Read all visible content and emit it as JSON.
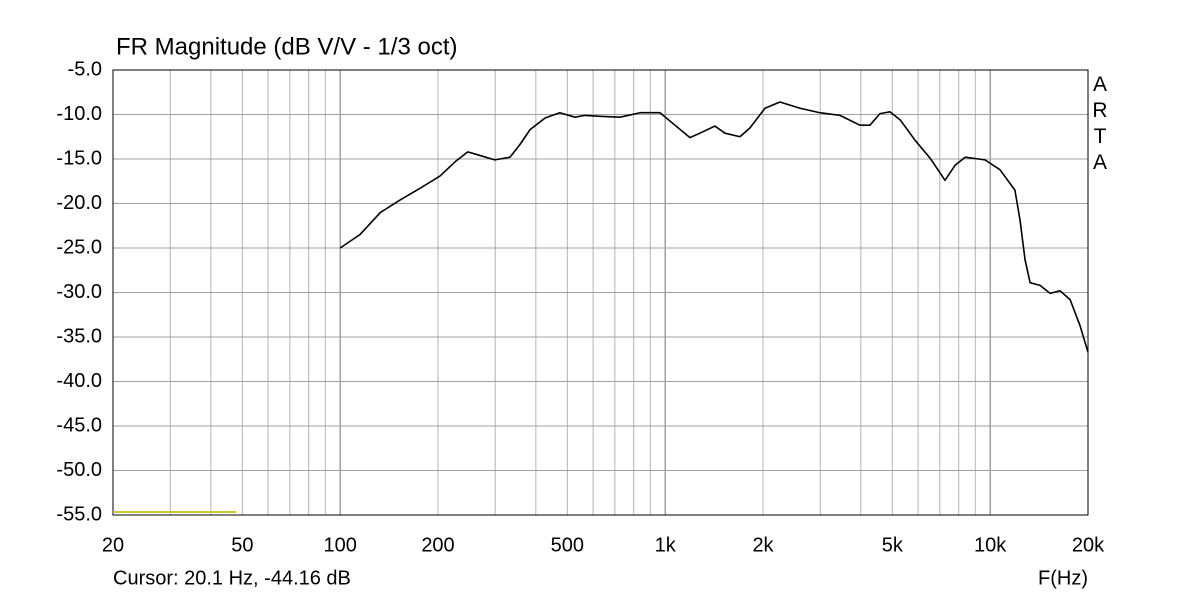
{
  "chart_data": {
    "type": "line",
    "title": "FR Magnitude (dB V/V - 1/3 oct)",
    "watermark": "ARTA",
    "cursor": "Cursor: 20.1 Hz, -44.16 dB",
    "x_label": "F(Hz)",
    "xscale": "log",
    "xlim": [
      20,
      20000
    ],
    "ylim": [
      -55,
      -5
    ],
    "xticks": [
      20,
      50,
      100,
      200,
      500,
      {
        "value": 1000,
        "label": "1k"
      },
      {
        "value": 2000,
        "label": "2k"
      },
      {
        "value": 5000,
        "label": "5k"
      },
      {
        "value": 10000,
        "label": "10k"
      },
      {
        "value": 20000,
        "label": "20k"
      }
    ],
    "xminor": [
      30,
      40,
      60,
      70,
      80,
      90,
      300,
      400,
      600,
      700,
      800,
      900,
      3000,
      4000,
      6000,
      7000,
      8000,
      9000
    ],
    "yticks": [
      {
        "value": -5,
        "label": "-5.0"
      },
      {
        "value": -10,
        "label": "-10.0"
      },
      {
        "value": -15,
        "label": "-15.0"
      },
      {
        "value": -20,
        "label": "-20.0"
      },
      {
        "value": -25,
        "label": "-25.0"
      },
      {
        "value": -30,
        "label": "-30.0"
      },
      {
        "value": -35,
        "label": "-35.0"
      },
      {
        "value": -40,
        "label": "-40.0"
      },
      {
        "value": -45,
        "label": "-45.0"
      },
      {
        "value": -50,
        "label": "-50.0"
      },
      {
        "value": -55,
        "label": "-55.0"
      }
    ],
    "grid": true,
    "color": "#000000",
    "x": [
      100,
      115,
      133,
      153,
      176,
      203,
      226,
      247,
      269,
      299,
      333,
      357,
      384,
      427,
      474,
      528,
      566,
      630,
      726,
      838,
      964,
      1072,
      1192,
      1279,
      1422,
      1528,
      1699,
      1824,
      2028,
      2255,
      2600,
      2993,
      3452,
      3973,
      4266,
      4581,
      4920,
      5285,
      5876,
      6532,
      7262,
      7800,
      8375,
      9640,
      10716,
      11916,
      12360,
      12800,
      13270,
      14240,
      15290,
      16400,
      17620,
      18890,
      20000
    ],
    "values": [
      -25.0,
      -23.5,
      -21.0,
      -19.6,
      -18.3,
      -16.9,
      -15.3,
      -14.2,
      -14.6,
      -15.1,
      -14.8,
      -13.4,
      -11.7,
      -10.4,
      -9.8,
      -10.3,
      -10.1,
      -10.2,
      -10.3,
      -9.8,
      -9.8,
      -11.2,
      -12.6,
      -12.1,
      -11.3,
      -12.1,
      -12.5,
      -11.5,
      -9.3,
      -8.6,
      -9.3,
      -9.8,
      -10.1,
      -11.2,
      -11.2,
      -9.9,
      -9.7,
      -10.6,
      -12.9,
      -14.9,
      -17.4,
      -15.7,
      -14.8,
      -15.1,
      -16.2,
      -18.5,
      -21.9,
      -26.3,
      -28.9,
      -29.2,
      -30.1,
      -29.8,
      -30.8,
      -33.7,
      -36.7
    ]
  }
}
